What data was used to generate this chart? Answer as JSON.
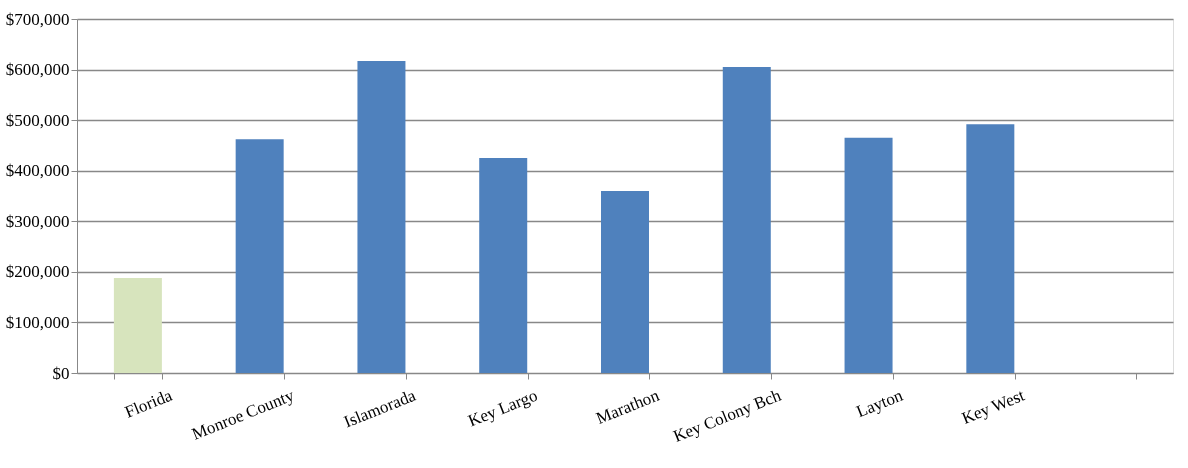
{
  "chart_data": {
    "type": "bar",
    "categories": [
      "Florida",
      "Monroe County",
      "Islamorada",
      "Key Largo",
      "Marathon",
      "Key Colony Bch",
      "Layton",
      "Key West",
      null
    ],
    "values": [
      188000,
      462000,
      617000,
      425000,
      360000,
      605000,
      465000,
      492000,
      null
    ],
    "colors": [
      "#d7e4bd",
      "#4f81bd",
      "#4f81bd",
      "#4f81bd",
      "#4f81bd",
      "#4f81bd",
      "#4f81bd",
      "#4f81bd",
      "#4f81bd"
    ],
    "ylim": [
      0,
      700000
    ],
    "yticks": [
      {
        "value": 0,
        "label": "$0"
      },
      {
        "value": 100000,
        "label": "$100,000"
      },
      {
        "value": 200000,
        "label": "$200,000"
      },
      {
        "value": 300000,
        "label": "$300,000"
      },
      {
        "value": 400000,
        "label": "$400,000"
      },
      {
        "value": 500000,
        "label": "$500,000"
      },
      {
        "value": 600000,
        "label": "$600,000"
      },
      {
        "value": 700000,
        "label": "$700,000"
      }
    ],
    "grid": "y"
  }
}
